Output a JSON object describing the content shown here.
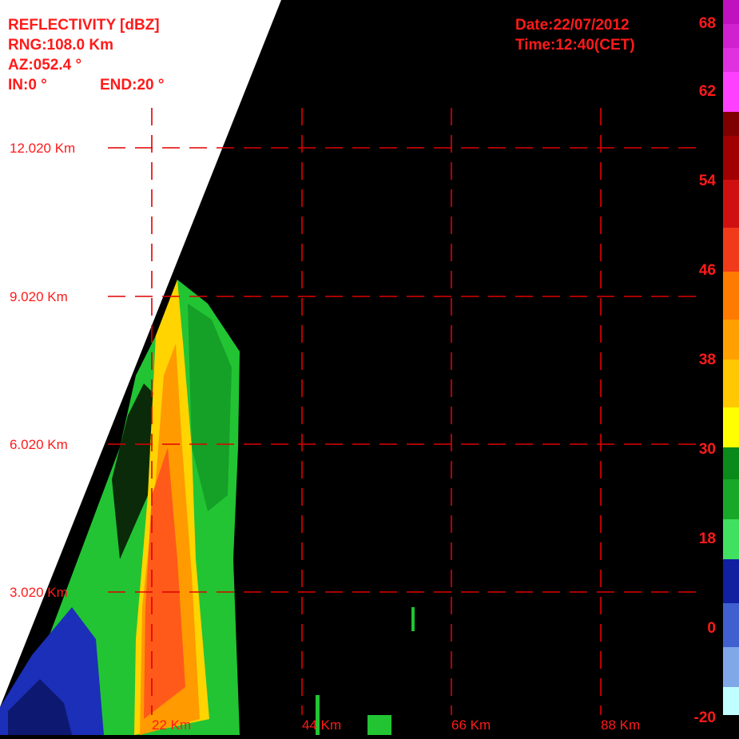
{
  "header": {
    "title": "REFLECTIVITY [dBZ]",
    "range": "RNG:108.0 Km",
    "azimuth": "AZ:052.4 °",
    "start": "IN:0 °",
    "end": "END:20 °",
    "date": "Date:22/07/2012",
    "time": "Time:12:40(CET)"
  },
  "height_labels": [
    "12.020 Km",
    "9.020 Km",
    "6.020 Km",
    "3.020 Km"
  ],
  "distance_labels": [
    "22 Km",
    "44 Km",
    "66 Km",
    "88 Km"
  ],
  "scale_labels": [
    "68",
    "62",
    "54",
    "46",
    "38",
    "30",
    "18",
    "0",
    "-20"
  ]
}
